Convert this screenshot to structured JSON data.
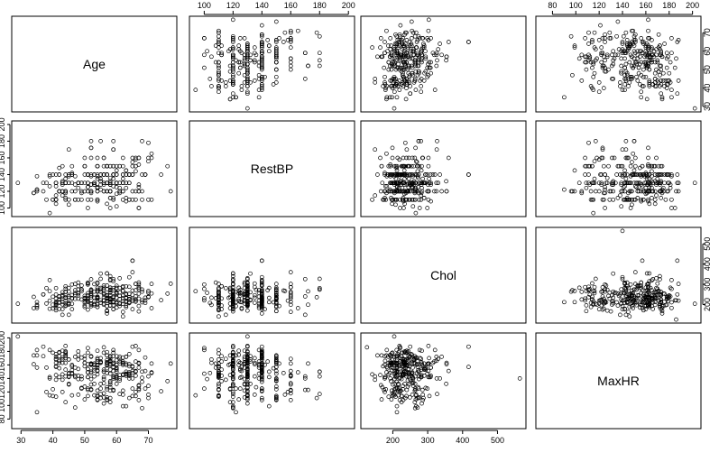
{
  "chart_data": {
    "type": "scatter",
    "layout": "pairs-matrix",
    "variables": [
      "Age",
      "RestBP",
      "Chol",
      "MaxHR"
    ],
    "ranges": {
      "Age": [
        29,
        77
      ],
      "RestBP": [
        94,
        200
      ],
      "Chol": [
        126,
        564
      ],
      "MaxHR": [
        71,
        202
      ]
    },
    "ticks": {
      "Age": [
        30,
        40,
        50,
        60,
        70
      ],
      "RestBP": [
        100,
        120,
        140,
        160,
        180,
        200
      ],
      "Chol": [
        200,
        300,
        400,
        500
      ],
      "MaxHR": [
        80,
        100,
        120,
        140,
        160,
        180,
        200
      ]
    },
    "axis_sides": {
      "top": [
        "RestBP",
        "MaxHR"
      ],
      "bottom": [
        "Age",
        "Chol"
      ],
      "left": [
        "RestBP",
        "MaxHR"
      ],
      "right": [
        "Age",
        "Chol"
      ]
    },
    "observations": {
      "Age": [
        63,
        67,
        67,
        37,
        41,
        56,
        62,
        57,
        63,
        53,
        57,
        56,
        56,
        44,
        52,
        57,
        48,
        54,
        48,
        49,
        64,
        58,
        58,
        58,
        60,
        50,
        58,
        66,
        43,
        40,
        69,
        60,
        64,
        59,
        44,
        42,
        43,
        57,
        55,
        61,
        65,
        40,
        71,
        59,
        61,
        58,
        51,
        50,
        65,
        53,
        41,
        65,
        44,
        44,
        60,
        54,
        50,
        41,
        54,
        51,
        51,
        46,
        58,
        54,
        54,
        60,
        60,
        54,
        59,
        46,
        65,
        67,
        62,
        65,
        44,
        65,
        60,
        51,
        48,
        58,
        45,
        53,
        39,
        68,
        52,
        44,
        47,
        53,
        53,
        51,
        66,
        62,
        62,
        44,
        63,
        52,
        59,
        60,
        52,
        48,
        45,
        34,
        57,
        71,
        49,
        54,
        59,
        57,
        61,
        39,
        61,
        56,
        52,
        43,
        62,
        41,
        58,
        35,
        63,
        65,
        48,
        63,
        51,
        55,
        65,
        45,
        56,
        54,
        44,
        62,
        54,
        51,
        29,
        51,
        43,
        55,
        70,
        62,
        35,
        51,
        59,
        59,
        52,
        64,
        58,
        47,
        57,
        41,
        45,
        60,
        52,
        42,
        67,
        55,
        64,
        70,
        51,
        58,
        60,
        68,
        46,
        77,
        54,
        58,
        48,
        57,
        52,
        54,
        35,
        45,
        70,
        53,
        59,
        62,
        64,
        57,
        52,
        56,
        43,
        53,
        48,
        56,
        42,
        59,
        60,
        63,
        42,
        66,
        54,
        69,
        50,
        51,
        43,
        62,
        68,
        67,
        69,
        45,
        50,
        59,
        50,
        64,
        57,
        64,
        43,
        45,
        58,
        50,
        55,
        62,
        37,
        38,
        41,
        66,
        52,
        56,
        46,
        46,
        64,
        59,
        41,
        54,
        39,
        53,
        63,
        34,
        47,
        67,
        54,
        66,
        52,
        55,
        49,
        74,
        54,
        54,
        56,
        46,
        49,
        42,
        41,
        41,
        49,
        61,
        60,
        67,
        58,
        47,
        52,
        62,
        57,
        58,
        64,
        51,
        43,
        42,
        67,
        76,
        70,
        57,
        44,
        58,
        60,
        44,
        61,
        42,
        52,
        59,
        40,
        42,
        61,
        66,
        46,
        71,
        59,
        64,
        66,
        39,
        57,
        58,
        57,
        47,
        55,
        35,
        61,
        58,
        58,
        58,
        56,
        56,
        67,
        55,
        44,
        63,
        63,
        41,
        59,
        57,
        45,
        68,
        57,
        57,
        38
      ],
      "RestBP": [
        145,
        160,
        120,
        130,
        130,
        120,
        140,
        120,
        130,
        140,
        140,
        140,
        130,
        120,
        172,
        150,
        110,
        140,
        130,
        130,
        110,
        150,
        120,
        132,
        130,
        120,
        120,
        150,
        150,
        110,
        140,
        117,
        140,
        135,
        130,
        140,
        120,
        150,
        132,
        150,
        150,
        140,
        160,
        150,
        130,
        112,
        110,
        150,
        140,
        130,
        105,
        120,
        112,
        130,
        130,
        124,
        140,
        110,
        125,
        125,
        130,
        142,
        128,
        135,
        120,
        145,
        140,
        150,
        170,
        150,
        155,
        125,
        120,
        110,
        110,
        160,
        125,
        140,
        130,
        150,
        104,
        130,
        140,
        180,
        120,
        140,
        138,
        130,
        140,
        140,
        150,
        130,
        110,
        120,
        140,
        138,
        140,
        130,
        128,
        130,
        110,
        118,
        120,
        110,
        130,
        110,
        140,
        150,
        120,
        138,
        130,
        140,
        120,
        130,
        150,
        130,
        120,
        122,
        130,
        140,
        124,
        140,
        140,
        180,
        140,
        170,
        130,
        108,
        120,
        135,
        120,
        130,
        130,
        140,
        132,
        132,
        156,
        140,
        138,
        125,
        140,
        150,
        180,
        140,
        130,
        110,
        150,
        110,
        138,
        140,
        160,
        120,
        100,
        140,
        140,
        110,
        140,
        130,
        130,
        140,
        130,
        120,
        150,
        120,
        130,
        130,
        140,
        124,
        120,
        140,
        160,
        130,
        140,
        160,
        140,
        150,
        118,
        120,
        115,
        128,
        130,
        160,
        120,
        170,
        150,
        145,
        120,
        160,
        138,
        140,
        150,
        100,
        128,
        130,
        120,
        152,
        140,
        140,
        160,
        126,
        150,
        130,
        140,
        140,
        120,
        130,
        120,
        130,
        140,
        130,
        120,
        110,
        126,
        120,
        128,
        160,
        120,
        140,
        140,
        180,
        110,
        150,
        126,
        128,
        108,
        118,
        120,
        120,
        110,
        110,
        120,
        122,
        120,
        140,
        160,
        150,
        128,
        140,
        110,
        120,
        130,
        115,
        118,
        150,
        130,
        100,
        136,
        128,
        172,
        120,
        130,
        100,
        110,
        120,
        130,
        148,
        128,
        150,
        178,
        140,
        130,
        112,
        102,
        135,
        118,
        120,
        110,
        140,
        110,
        140,
        120,
        144,
        140,
        165,
        110,
        130,
        158,
        94,
        130,
        128,
        120,
        110,
        128,
        122,
        124,
        130,
        120,
        128,
        140,
        150,
        160,
        135,
        118,
        124,
        112,
        140,
        112,
        105,
        130,
        110,
        130,
        140,
        130,
        120,
        120,
        110,
        138
      ],
      "Chol": [
        233,
        286,
        229,
        250,
        204,
        236,
        268,
        354,
        254,
        203,
        192,
        294,
        256,
        263,
        199,
        168,
        229,
        239,
        275,
        266,
        211,
        283,
        284,
        224,
        206,
        219,
        340,
        226,
        247,
        239,
        234,
        233,
        226,
        234,
        233,
        226,
        177,
        276,
        353,
        243,
        225,
        199,
        302,
        212,
        330,
        230,
        175,
        243,
        417,
        197,
        198,
        177,
        290,
        219,
        253,
        266,
        233,
        172,
        273,
        213,
        305,
        177,
        216,
        304,
        188,
        282,
        185,
        232,
        326,
        231,
        269,
        254,
        267,
        248,
        197,
        360,
        258,
        308,
        245,
        270,
        208,
        264,
        321,
        274,
        325,
        235,
        257,
        216,
        234,
        256,
        302,
        231,
        141,
        193,
        187,
        271,
        177,
        212,
        205,
        309,
        264,
        182,
        354,
        255,
        294,
        206,
        239,
        246,
        260,
        219,
        204,
        274,
        245,
        201,
        244,
        214,
        211,
        192,
        249,
        417,
        255,
        195,
        299,
        327,
        218,
        149,
        283,
        309,
        205,
        286,
        188,
        305,
        204,
        227,
        261,
        221,
        267,
        268,
        183,
        245,
        197,
        271,
        274,
        253,
        259,
        228,
        168,
        229,
        204,
        293,
        246,
        211,
        299,
        274,
        207,
        259,
        216,
        325,
        282,
        211,
        204,
        303,
        232,
        319,
        256,
        232,
        192,
        283,
        198,
        233,
        239,
        197,
        215,
        164,
        212,
        229,
        205,
        221,
        149,
        234,
        291,
        256,
        209,
        240,
        260,
        212,
        241,
        214,
        239,
        220,
        188,
        221,
        240,
        216,
        264,
        193,
        208,
        240,
        230,
        212,
        209,
        228,
        217,
        335,
        213,
        282,
        225,
        196,
        263,
        290,
        250,
        281,
        183,
        302,
        254,
        199,
        299,
        230,
        211,
        281,
        208,
        230,
        179,
        301,
        231,
        238,
        271,
        166,
        200,
        240,
        236,
        264,
        225,
        222,
        263,
        235,
        249,
        231,
        275,
        178,
        195,
        281,
        274,
        193,
        211,
        277,
        273,
        249,
        265,
        203,
        192,
        231,
        236,
        232,
        228,
        211,
        309,
        254,
        236,
        220,
        278,
        195,
        258,
        246,
        282,
        239,
        246,
        315,
        180,
        225,
        204,
        271,
        247,
        182,
        211,
        288,
        219,
        266,
        170,
        223,
        243,
        302,
        282,
        212,
        227,
        197,
        245,
        261,
        221,
        205,
        285,
        209,
        263,
        218,
        290,
        250,
        177,
        234,
        200,
        221,
        294,
        156,
        205,
        219,
        216,
        264,
        193,
        126,
        212,
        211,
        242,
        214,
        564
      ],
      "MaxHR": [
        150,
        108,
        129,
        187,
        172,
        178,
        160,
        163,
        147,
        155,
        148,
        153,
        142,
        173,
        162,
        174,
        168,
        160,
        139,
        171,
        144,
        162,
        160,
        173,
        132,
        158,
        172,
        114,
        171,
        114,
        151,
        160,
        158,
        161,
        179,
        178,
        120,
        112,
        132,
        137,
        114,
        178,
        162,
        157,
        169,
        165,
        123,
        128,
        157,
        152,
        168,
        140,
        153,
        188,
        144,
        109,
        163,
        158,
        152,
        125,
        142,
        160,
        131,
        170,
        113,
        142,
        155,
        165,
        140,
        147,
        148,
        163,
        99,
        158,
        177,
        151,
        141,
        142,
        180,
        111,
        148,
        143,
        182,
        150,
        172,
        180,
        156,
        115,
        160,
        149,
        151,
        145,
        146,
        175,
        172,
        161,
        142,
        173,
        139,
        144,
        132,
        174,
        161,
        148,
        126,
        151,
        178,
        167,
        162,
        140,
        172,
        150,
        173,
        163,
        165,
        176,
        162,
        174,
        146,
        187,
        175,
        172,
        161,
        117,
        125,
        143,
        103,
        156,
        163,
        116,
        146,
        114,
        202,
        178,
        168,
        165,
        116,
        171,
        182,
        154,
        122,
        157,
        150,
        176,
        134,
        144,
        109,
        145,
        147,
        156,
        131,
        166,
        125,
        111,
        144,
        129,
        149,
        166,
        153,
        135,
        115,
        162,
        165,
        165,
        116,
        164,
        160,
        181,
        156,
        168,
        143,
        160,
        163,
        145,
        149,
        124,
        124,
        186,
        138,
        132,
        154,
        133,
        142,
        123,
        167,
        99,
        179,
        144,
        159,
        171,
        163,
        185,
        181,
        122,
        96,
        162,
        125,
        168,
        169,
        151,
        173,
        147,
        179,
        140,
        168,
        142,
        105,
        109,
        170,
        162,
        173,
        156,
        157,
        188,
        161,
        118,
        147,
        152,
        161,
        143,
        113,
        108,
        142,
        162,
        162,
        161,
        97,
        130,
        115,
        150,
        162,
        125,
        139,
        121,
        122,
        168,
        112,
        158,
        143,
        166,
        163,
        169,
        125,
        140,
        150,
        182,
        127,
        172,
        123,
        163,
        159,
        147,
        146,
        154,
        146,
        155,
        156,
        136,
        111,
        108,
        170,
        136,
        139,
        143,
        145,
        163,
        148,
        163,
        124,
        173,
        117,
        165,
        148,
        149,
        182,
        111,
        120,
        115,
        127,
        122,
        148,
        142,
        164,
        90,
        165,
        162,
        153,
        169,
        150,
        139,
        123,
        163,
        105,
        160,
        144,
        138,
        173,
        163,
        131,
        141,
        155,
        174,
        120,
        158,
        132,
        162,
        165,
        186,
        159,
        126,
        159,
        173,
        140,
        167,
        166,
        113,
        71,
        95,
        136,
        152,
        147,
        132,
        160,
        150
      ]
    }
  }
}
